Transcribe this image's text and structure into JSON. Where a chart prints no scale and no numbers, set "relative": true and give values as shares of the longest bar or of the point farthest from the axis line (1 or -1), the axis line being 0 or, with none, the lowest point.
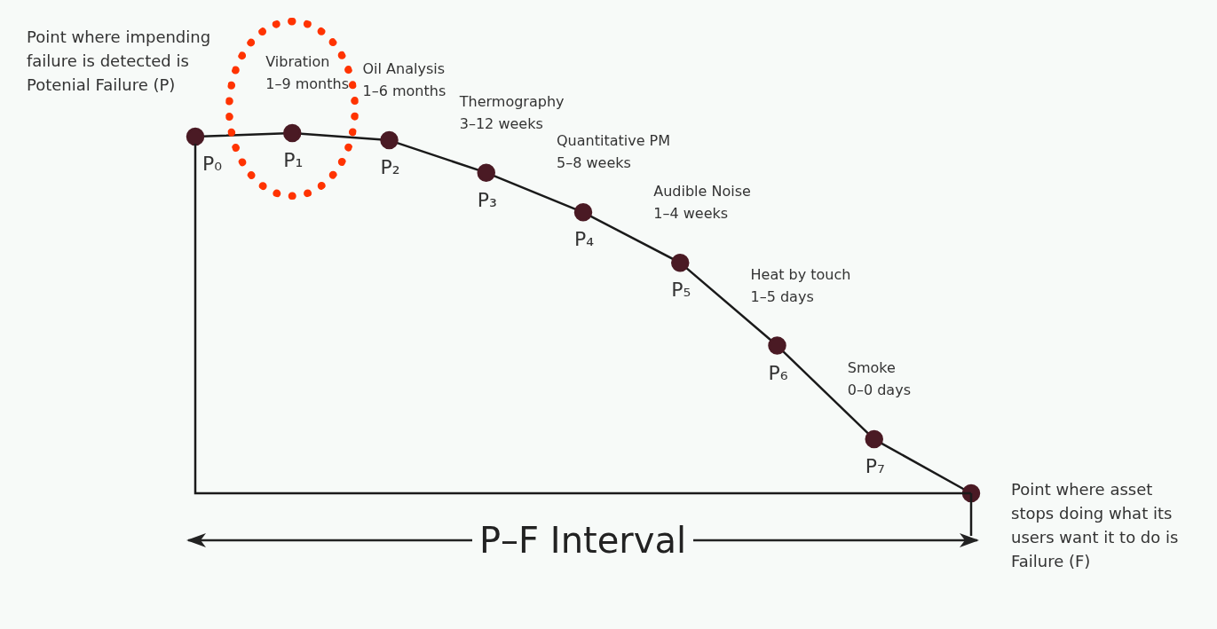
{
  "chart_data": {
    "type": "line",
    "relative": true,
    "categories": [
      null,
      null,
      null,
      null,
      null,
      null,
      null,
      null,
      null
    ],
    "series": [
      {
        "color": "#1a1a1a",
        "values": [
          0.99,
          1,
          0.98,
          0.89,
          0.78,
          0.64,
          0.41,
          0.15,
          0
        ]
      }
    ],
    "marker": "circle",
    "legend": false,
    "annotations": [
      "Point where impending\nfailure is detected is\nPotenial Failure (P)",
      "Point where asset\nstops doing what its\nusers want it to do is\nFailure (F)",
      "P–F Interval",
      "Vibration\n1–9 months",
      "Oil Analysis\n1–6 months",
      "Thermography\n3–12 weeks",
      "Quantitative PM\n5–8 weeks",
      "Audible Noise\n1–4 weeks",
      "Heat by touch\n1–5 days",
      "Smoke\n0–0 days",
      "P₀",
      "P₁",
      "P₂",
      "P₃",
      "P₄",
      "P₅",
      "P₆",
      "P₇"
    ]
  }
}
